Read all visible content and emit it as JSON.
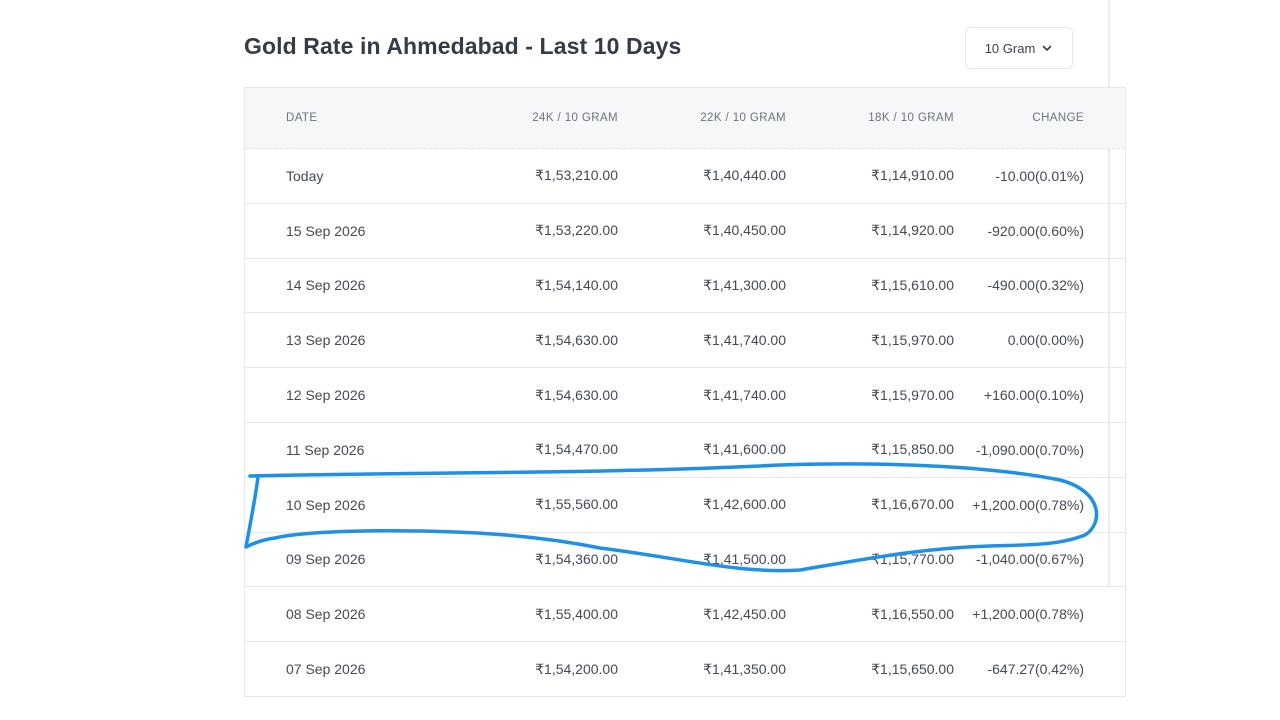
{
  "header": {
    "title": "Gold Rate in Ahmedabad - Last 10 Days",
    "unit_selector": "10 Gram"
  },
  "table": {
    "columns": [
      "DATE",
      "24K / 10 GRAM",
      "22K / 10 GRAM",
      "18K / 10 GRAM",
      "CHANGE"
    ],
    "rows": [
      {
        "date": "Today",
        "k24": "₹1,53,210.00",
        "k22": "₹1,40,440.00",
        "k18": "₹1,14,910.00",
        "change": "-10.00(0.01%)",
        "trend": "neg"
      },
      {
        "date": "15 Sep 2026",
        "k24": "₹1,53,220.00",
        "k22": "₹1,40,450.00",
        "k18": "₹1,14,920.00",
        "change": "-920.00(0.60%)",
        "trend": "neg"
      },
      {
        "date": "14 Sep 2026",
        "k24": "₹1,54,140.00",
        "k22": "₹1,41,300.00",
        "k18": "₹1,15,610.00",
        "change": "-490.00(0.32%)",
        "trend": "neg"
      },
      {
        "date": "13 Sep 2026",
        "k24": "₹1,54,630.00",
        "k22": "₹1,41,740.00",
        "k18": "₹1,15,970.00",
        "change": "0.00(0.00%)",
        "trend": "zero"
      },
      {
        "date": "12 Sep 2026",
        "k24": "₹1,54,630.00",
        "k22": "₹1,41,740.00",
        "k18": "₹1,15,970.00",
        "change": "+160.00(0.10%)",
        "trend": "pos"
      },
      {
        "date": "11 Sep 2026",
        "k24": "₹1,54,470.00",
        "k22": "₹1,41,600.00",
        "k18": "₹1,15,850.00",
        "change": "-1,090.00(0.70%)",
        "trend": "neg"
      },
      {
        "date": "10 Sep 2026",
        "k24": "₹1,55,560.00",
        "k22": "₹1,42,600.00",
        "k18": "₹1,16,670.00",
        "change": "+1,200.00(0.78%)",
        "trend": "pos"
      },
      {
        "date": "09 Sep 2026",
        "k24": "₹1,54,360.00",
        "k22": "₹1,41,500.00",
        "k18": "₹1,15,770.00",
        "change": "-1,040.00(0.67%)",
        "trend": "neg"
      },
      {
        "date": "08 Sep 2026",
        "k24": "₹1,55,400.00",
        "k22": "₹1,42,450.00",
        "k18": "₹1,16,550.00",
        "change": "+1,200.00(0.78%)",
        "trend": "pos"
      },
      {
        "date": "07 Sep 2026",
        "k24": "₹1,54,200.00",
        "k22": "₹1,41,350.00",
        "k18": "₹1,15,650.00",
        "change": "-647.27(0.42%)",
        "trend": "neg"
      }
    ]
  },
  "colors": {
    "negative": "#e4573d",
    "positive": "#1bab6b",
    "annotation": "#1e90e6"
  },
  "icons": {
    "unit_selector": "chevron-down-icon"
  }
}
